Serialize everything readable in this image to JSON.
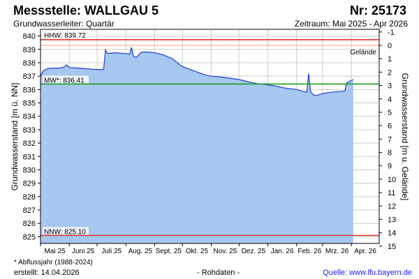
{
  "header": {
    "title": "Messstelle: WALLGAU 5",
    "nr": "Nr: 25173",
    "aquifer": "Grundwasserleiter: Quartär",
    "period": "Zeitraum: Mai 2025 - Apr 2026"
  },
  "footer": {
    "footnote": "* Abflussjahr (1988-2024)",
    "created": "erstellt:  14.04.2026",
    "raw": "- Rohdaten -",
    "source": "Quelle:  www.lfu.bayern.de"
  },
  "colors": {
    "fill": "#a6c8f0",
    "line": "#1f3fd8",
    "hhw": "#e03030",
    "nnw": "#e03030",
    "mw": "#1e9e1e",
    "gelaende": "#f0a070"
  },
  "chart_data": {
    "type": "area",
    "ylabel": "Grundwasserstand [m ü. NN]",
    "y2label": "Grundwasserstand [m u. Gelände]",
    "ylim": [
      824.5,
      840.5
    ],
    "yticks": [
      825,
      826,
      827,
      828,
      829,
      830,
      831,
      832,
      833,
      834,
      835,
      836,
      837,
      838,
      839,
      840
    ],
    "y2_reference": 839.3,
    "y2ticks": [
      -1,
      0,
      1,
      2,
      3,
      4,
      5,
      6,
      7,
      8,
      9,
      10,
      11,
      12,
      13,
      14,
      15
    ],
    "x_months": [
      "Mai 25",
      "Juni 25",
      "Juli 25",
      "Aug. 25",
      "Sept. 25",
      "Okt. 25",
      "Nov. 25",
      "Dez. 25",
      "Jan. 26",
      "Feb. 26",
      "Mrz. 26",
      "Apr. 26"
    ],
    "x_month_days": [
      31,
      30,
      31,
      31,
      30,
      31,
      30,
      31,
      31,
      28,
      31,
      30
    ],
    "grid": true,
    "reference_lines": [
      {
        "key": "hhw",
        "label": "HHW: 839.72",
        "value": 839.72
      },
      {
        "key": "gelaende",
        "label": "Gelände",
        "value": 839.3
      },
      {
        "key": "mw",
        "label": "MW*: 836.41",
        "value": 836.41
      },
      {
        "key": "nnw",
        "label": "NNW: 825.10",
        "value": 825.1
      }
    ],
    "series": [
      {
        "x": [
          "2025-05-01",
          "2025-05-04",
          "2025-05-08",
          "2025-05-15",
          "2025-05-22",
          "2025-05-27",
          "2025-05-29",
          "2025-06-01",
          "2025-06-10",
          "2025-06-20",
          "2025-06-30",
          "2025-07-05",
          "2025-07-08",
          "2025-07-10",
          "2025-07-12",
          "2025-07-14",
          "2025-07-20",
          "2025-07-28",
          "2025-08-05",
          "2025-08-07",
          "2025-08-09",
          "2025-08-12",
          "2025-08-18",
          "2025-08-25",
          "2025-09-01",
          "2025-09-10",
          "2025-09-20",
          "2025-09-30",
          "2025-10-05",
          "2025-10-15",
          "2025-10-25",
          "2025-11-01",
          "2025-11-10",
          "2025-11-20",
          "2025-12-01",
          "2025-12-10",
          "2025-12-20",
          "2026-01-01",
          "2026-01-10",
          "2026-01-20",
          "2026-02-01",
          "2026-02-08",
          "2026-02-12",
          "2026-02-14",
          "2026-02-16",
          "2026-02-19",
          "2026-02-22",
          "2026-03-01",
          "2026-03-10",
          "2026-03-20",
          "2026-03-25",
          "2026-03-27",
          "2026-03-31",
          "2026-04-03"
        ],
        "y": [
          837.0,
          837.4,
          837.55,
          837.6,
          837.6,
          837.7,
          837.85,
          837.65,
          837.6,
          837.55,
          837.5,
          837.5,
          837.5,
          838.95,
          838.7,
          838.7,
          838.75,
          838.7,
          838.65,
          839.15,
          838.5,
          838.4,
          838.8,
          838.8,
          838.75,
          838.6,
          838.3,
          837.75,
          837.6,
          837.35,
          837.1,
          837.0,
          836.95,
          836.85,
          836.75,
          836.6,
          836.45,
          836.35,
          836.25,
          836.1,
          836.0,
          835.85,
          835.8,
          837.2,
          835.85,
          835.6,
          835.55,
          835.7,
          835.8,
          835.85,
          835.9,
          836.5,
          836.65,
          836.75
        ]
      }
    ]
  }
}
